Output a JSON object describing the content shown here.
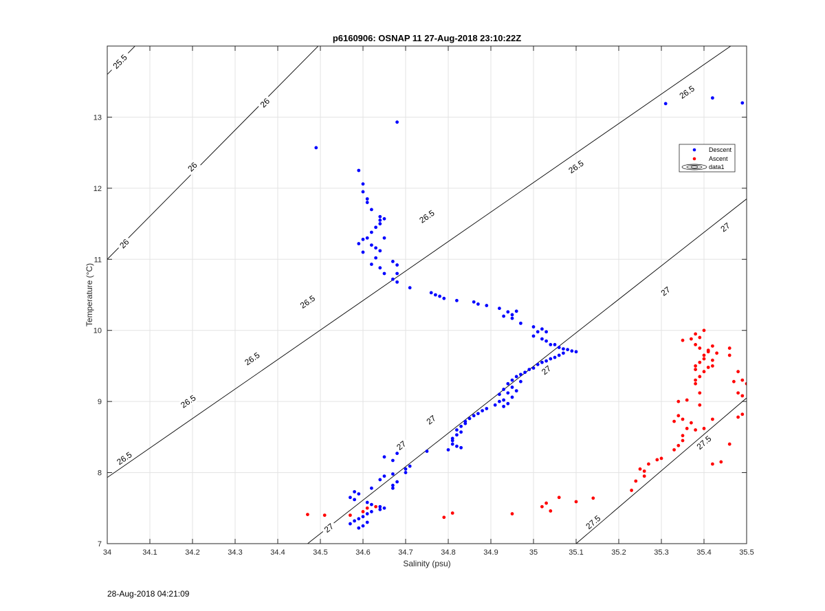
{
  "footer": {
    "timestamp": "28-Aug-2018 04:21:09"
  },
  "chart_data": {
    "type": "scatter",
    "title": "p6160906: OSNAP 11 27-Aug-2018 23:10:22Z",
    "xlabel": "Salinity (psu)",
    "ylabel": "Temperature (°C)",
    "xlim": [
      34,
      35.5
    ],
    "ylim": [
      7,
      14
    ],
    "xticks": [
      "34",
      "34.1",
      "34.2",
      "34.3",
      "34.4",
      "34.5",
      "34.6",
      "34.7",
      "34.8",
      "34.9",
      "35",
      "35.1",
      "35.2",
      "35.3",
      "35.4",
      "35.5"
    ],
    "yticks": [
      "7",
      "8",
      "9",
      "10",
      "11",
      "12",
      "13"
    ],
    "grid": true,
    "legend": {
      "position": "upper-right",
      "entries": [
        "Descent",
        "Ascent",
        "data1"
      ]
    },
    "colors": {
      "descent": "#0000ff",
      "ascent": "#ff0000",
      "contour": "#000000",
      "grid": "#e3e3e3"
    },
    "contours": [
      {
        "level": "25.5",
        "line": [
          [
            34.0,
            13.6
          ],
          [
            34.07,
            14.03
          ]
        ],
        "labels": [
          [
            34.03,
            13.78
          ]
        ]
      },
      {
        "level": "26",
        "line": [
          [
            34.0,
            11.0
          ],
          [
            34.5,
            14.03
          ]
        ],
        "labels": [
          [
            34.04,
            11.22
          ],
          [
            34.2,
            12.3
          ],
          [
            34.37,
            13.2
          ]
        ]
      },
      {
        "level": "26.5",
        "line": [
          [
            34.0,
            7.93
          ],
          [
            35.47,
            14.03
          ]
        ],
        "labels": [
          [
            34.04,
            8.2
          ],
          [
            34.19,
            9.0
          ],
          [
            34.34,
            9.6
          ],
          [
            34.47,
            10.4
          ],
          [
            34.75,
            11.6
          ],
          [
            35.1,
            12.3
          ],
          [
            35.36,
            13.35
          ]
        ]
      },
      {
        "level": "27",
        "line": [
          [
            34.47,
            7.0
          ],
          [
            35.5,
            11.85
          ]
        ],
        "labels": [
          [
            34.52,
            7.22
          ],
          [
            34.69,
            8.38
          ],
          [
            34.76,
            8.74
          ],
          [
            35.03,
            9.44
          ],
          [
            35.31,
            10.55
          ],
          [
            35.45,
            11.45
          ]
        ]
      },
      {
        "level": "27.5",
        "line": [
          [
            35.1,
            7.0
          ],
          [
            35.5,
            9.05
          ]
        ],
        "labels": [
          [
            35.14,
            7.3
          ],
          [
            35.4,
            8.42
          ]
        ]
      }
    ],
    "series": [
      {
        "name": "Descent",
        "points": [
          [
            34.49,
            12.57
          ],
          [
            34.68,
            12.93
          ],
          [
            35.31,
            13.19
          ],
          [
            35.42,
            13.27
          ],
          [
            35.49,
            13.2
          ],
          [
            34.59,
            12.25
          ],
          [
            34.6,
            11.95
          ],
          [
            34.6,
            12.06
          ],
          [
            34.61,
            11.85
          ],
          [
            34.61,
            11.8
          ],
          [
            34.62,
            11.7
          ],
          [
            34.64,
            11.6
          ],
          [
            34.65,
            11.57
          ],
          [
            34.64,
            11.55
          ],
          [
            34.64,
            11.5
          ],
          [
            34.63,
            11.45
          ],
          [
            34.62,
            11.38
          ],
          [
            34.6,
            11.28
          ],
          [
            34.61,
            11.3
          ],
          [
            34.63,
            11.16
          ],
          [
            34.64,
            11.12
          ],
          [
            34.62,
            11.2
          ],
          [
            34.59,
            11.22
          ],
          [
            34.63,
            11.02
          ],
          [
            34.62,
            10.93
          ],
          [
            34.6,
            11.1
          ],
          [
            34.65,
            11.3
          ],
          [
            34.64,
            10.88
          ],
          [
            34.65,
            10.8
          ],
          [
            34.67,
            10.97
          ],
          [
            34.68,
            10.92
          ],
          [
            34.68,
            10.8
          ],
          [
            34.67,
            10.72
          ],
          [
            34.68,
            10.68
          ],
          [
            34.71,
            10.6
          ],
          [
            34.76,
            10.53
          ],
          [
            34.77,
            10.5
          ],
          [
            34.78,
            10.48
          ],
          [
            34.79,
            10.45
          ],
          [
            34.82,
            10.42
          ],
          [
            34.86,
            10.4
          ],
          [
            34.87,
            10.37
          ],
          [
            34.89,
            10.35
          ],
          [
            34.92,
            10.31
          ],
          [
            34.94,
            10.26
          ],
          [
            34.95,
            10.22
          ],
          [
            34.96,
            10.27
          ],
          [
            34.93,
            10.2
          ],
          [
            34.95,
            10.17
          ],
          [
            34.97,
            10.1
          ],
          [
            35.0,
            10.05
          ],
          [
            35.02,
            10.02
          ],
          [
            35.01,
            9.98
          ],
          [
            35.03,
            9.98
          ],
          [
            35.0,
            9.92
          ],
          [
            35.02,
            9.88
          ],
          [
            35.03,
            9.85
          ],
          [
            35.04,
            9.8
          ],
          [
            35.05,
            9.8
          ],
          [
            35.06,
            9.76
          ],
          [
            35.07,
            9.74
          ],
          [
            35.08,
            9.73
          ],
          [
            35.09,
            9.71
          ],
          [
            35.1,
            9.7
          ],
          [
            35.07,
            9.68
          ],
          [
            35.06,
            9.65
          ],
          [
            35.05,
            9.62
          ],
          [
            35.04,
            9.6
          ],
          [
            35.03,
            9.57
          ],
          [
            35.02,
            9.55
          ],
          [
            35.01,
            9.52
          ],
          [
            35.0,
            9.47
          ],
          [
            34.99,
            9.45
          ],
          [
            34.98,
            9.41
          ],
          [
            34.97,
            9.38
          ],
          [
            34.96,
            9.35
          ],
          [
            34.95,
            9.3
          ],
          [
            34.97,
            9.28
          ],
          [
            34.94,
            9.25
          ],
          [
            34.95,
            9.2
          ],
          [
            34.93,
            9.17
          ],
          [
            34.96,
            9.15
          ],
          [
            34.94,
            9.12
          ],
          [
            34.92,
            9.1
          ],
          [
            34.95,
            9.06
          ],
          [
            34.93,
            9.02
          ],
          [
            34.92,
            9.0
          ],
          [
            34.94,
            8.97
          ],
          [
            34.93,
            8.93
          ],
          [
            34.91,
            8.95
          ],
          [
            34.89,
            8.9
          ],
          [
            34.88,
            8.87
          ],
          [
            34.87,
            8.83
          ],
          [
            34.86,
            8.8
          ],
          [
            34.85,
            8.76
          ],
          [
            34.84,
            8.72
          ],
          [
            34.84,
            8.69
          ],
          [
            34.83,
            8.65
          ],
          [
            34.82,
            8.6
          ],
          [
            34.83,
            8.57
          ],
          [
            34.82,
            8.53
          ],
          [
            34.81,
            8.48
          ],
          [
            34.81,
            8.45
          ],
          [
            34.81,
            8.4
          ],
          [
            34.82,
            8.37
          ],
          [
            34.83,
            8.35
          ],
          [
            34.8,
            8.32
          ],
          [
            34.75,
            8.3
          ],
          [
            34.68,
            8.27
          ],
          [
            34.65,
            8.22
          ],
          [
            34.67,
            8.17
          ],
          [
            34.71,
            8.09
          ],
          [
            34.7,
            8.05
          ],
          [
            34.7,
            8.0
          ],
          [
            34.67,
            7.98
          ],
          [
            34.65,
            7.95
          ],
          [
            34.64,
            7.9
          ],
          [
            34.68,
            7.87
          ],
          [
            34.67,
            7.82
          ],
          [
            34.67,
            7.78
          ],
          [
            34.62,
            7.78
          ],
          [
            34.58,
            7.73
          ],
          [
            34.59,
            7.7
          ],
          [
            34.57,
            7.65
          ],
          [
            34.58,
            7.62
          ],
          [
            34.61,
            7.58
          ],
          [
            34.62,
            7.55
          ],
          [
            34.64,
            7.52
          ],
          [
            34.65,
            7.5
          ],
          [
            34.64,
            7.48
          ],
          [
            34.62,
            7.45
          ],
          [
            34.61,
            7.42
          ],
          [
            34.6,
            7.38
          ],
          [
            34.59,
            7.35
          ],
          [
            34.58,
            7.32
          ],
          [
            34.57,
            7.28
          ],
          [
            34.6,
            7.25
          ],
          [
            34.59,
            7.22
          ],
          [
            34.61,
            7.3
          ]
        ]
      },
      {
        "name": "Ascent",
        "points": [
          [
            34.47,
            7.41
          ],
          [
            34.51,
            7.4
          ],
          [
            34.57,
            7.4
          ],
          [
            34.6,
            7.45
          ],
          [
            34.61,
            7.5
          ],
          [
            34.63,
            7.52
          ],
          [
            34.79,
            7.37
          ],
          [
            34.81,
            7.43
          ],
          [
            34.95,
            7.42
          ],
          [
            35.02,
            7.52
          ],
          [
            35.03,
            7.57
          ],
          [
            35.04,
            7.46
          ],
          [
            35.06,
            7.65
          ],
          [
            35.1,
            7.59
          ],
          [
            35.14,
            7.64
          ],
          [
            35.23,
            7.75
          ],
          [
            35.24,
            7.88
          ],
          [
            35.25,
            8.05
          ],
          [
            35.26,
            7.95
          ],
          [
            35.26,
            8.02
          ],
          [
            35.27,
            8.12
          ],
          [
            35.29,
            8.18
          ],
          [
            35.3,
            8.2
          ],
          [
            35.33,
            8.32
          ],
          [
            35.34,
            8.38
          ],
          [
            35.35,
            8.45
          ],
          [
            35.35,
            8.52
          ],
          [
            35.38,
            8.6
          ],
          [
            35.4,
            8.62
          ],
          [
            35.42,
            8.75
          ],
          [
            35.44,
            8.15
          ],
          [
            35.42,
            8.12
          ],
          [
            35.46,
            8.4
          ],
          [
            35.48,
            8.78
          ],
          [
            35.49,
            8.82
          ],
          [
            35.33,
            8.72
          ],
          [
            35.34,
            8.8
          ],
          [
            35.35,
            8.75
          ],
          [
            35.36,
            8.62
          ],
          [
            35.37,
            8.7
          ],
          [
            35.34,
            9.0
          ],
          [
            35.36,
            9.02
          ],
          [
            35.39,
            9.12
          ],
          [
            35.39,
            8.95
          ],
          [
            35.38,
            9.3
          ],
          [
            35.38,
            9.25
          ],
          [
            35.39,
            9.35
          ],
          [
            35.4,
            9.42
          ],
          [
            35.41,
            9.48
          ],
          [
            35.38,
            9.5
          ],
          [
            35.39,
            9.55
          ],
          [
            35.4,
            9.6
          ],
          [
            35.4,
            9.65
          ],
          [
            35.41,
            9.72
          ],
          [
            35.42,
            9.58
          ],
          [
            35.43,
            9.68
          ],
          [
            35.39,
            9.75
          ],
          [
            35.38,
            9.8
          ],
          [
            35.37,
            9.88
          ],
          [
            35.35,
            9.86
          ],
          [
            35.38,
            9.95
          ],
          [
            35.4,
            10.0
          ],
          [
            35.39,
            9.9
          ],
          [
            35.42,
            9.78
          ],
          [
            35.41,
            9.7
          ],
          [
            35.42,
            9.5
          ],
          [
            35.38,
            9.45
          ],
          [
            35.46,
            9.65
          ],
          [
            35.46,
            9.75
          ],
          [
            35.48,
            9.42
          ],
          [
            35.49,
            9.3
          ],
          [
            35.5,
            9.25
          ],
          [
            35.48,
            9.12
          ],
          [
            35.49,
            9.08
          ],
          [
            35.47,
            9.28
          ]
        ]
      }
    ]
  }
}
